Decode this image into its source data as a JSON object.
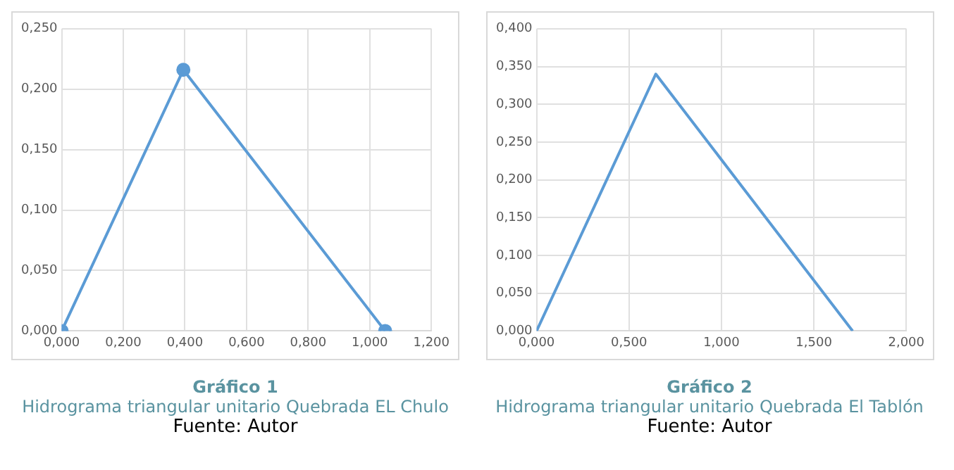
{
  "chart_data": [
    {
      "type": "line",
      "title": "Gráfico 1",
      "subtitle": "Hidrograma triangular unitario Quebrada EL Chulo",
      "annotations": [
        "Fuente: Autor"
      ],
      "x": [
        0,
        0.395,
        1.05
      ],
      "series": [
        {
          "color": "#5b9bd5",
          "values": [
            0,
            0.216,
            0
          ]
        }
      ],
      "xlim": [
        0,
        1.2
      ],
      "xticks": [
        {
          "value": 0,
          "label": "0,000"
        },
        {
          "value": 0.2,
          "label": "0,200"
        },
        {
          "value": 0.4,
          "label": "0,400"
        },
        {
          "value": 0.6,
          "label": "0,600"
        },
        {
          "value": 0.8,
          "label": "0,800"
        },
        {
          "value": 1,
          "label": "1,000"
        },
        {
          "value": 1.2,
          "label": "1,200"
        }
      ],
      "ylim": [
        0,
        0.25
      ],
      "yticks": [
        {
          "value": 0,
          "label": "0,000"
        },
        {
          "value": 0.05,
          "label": "0,050"
        },
        {
          "value": 0.1,
          "label": "0,100"
        },
        {
          "value": 0.15,
          "label": "0,150"
        },
        {
          "value": 0.2,
          "label": "0,200"
        },
        {
          "value": 0.25,
          "label": "0,250"
        }
      ],
      "grid": true,
      "legend": false,
      "marker": "circle",
      "line_style": "solid"
    },
    {
      "type": "line",
      "title": "Gráfico 2",
      "subtitle": "Hidrograma triangular unitario Quebrada El Tablón",
      "annotations": [
        "Fuente: Autor"
      ],
      "x": [
        0,
        0.645,
        1.71
      ],
      "series": [
        {
          "color": "#5b9bd5",
          "values": [
            0,
            0.34,
            0
          ]
        }
      ],
      "xlim": [
        0,
        2
      ],
      "xticks": [
        {
          "value": 0,
          "label": "0,000"
        },
        {
          "value": 0.5,
          "label": "0,500"
        },
        {
          "value": 1,
          "label": "1,000"
        },
        {
          "value": 1.5,
          "label": "1,500"
        },
        {
          "value": 2,
          "label": "2,000"
        }
      ],
      "ylim": [
        0,
        0.4
      ],
      "yticks": [
        {
          "value": 0,
          "label": "0,000"
        },
        {
          "value": 0.05,
          "label": "0,050"
        },
        {
          "value": 0.1,
          "label": "0,100"
        },
        {
          "value": 0.15,
          "label": "0,150"
        },
        {
          "value": 0.2,
          "label": "0,200"
        },
        {
          "value": 0.25,
          "label": "0,250"
        },
        {
          "value": 0.3,
          "label": "0,300"
        },
        {
          "value": 0.35,
          "label": "0,350"
        },
        {
          "value": 0.4,
          "label": "0,400"
        }
      ],
      "grid": true,
      "legend": false,
      "marker": "none",
      "line_style": "solid"
    }
  ]
}
